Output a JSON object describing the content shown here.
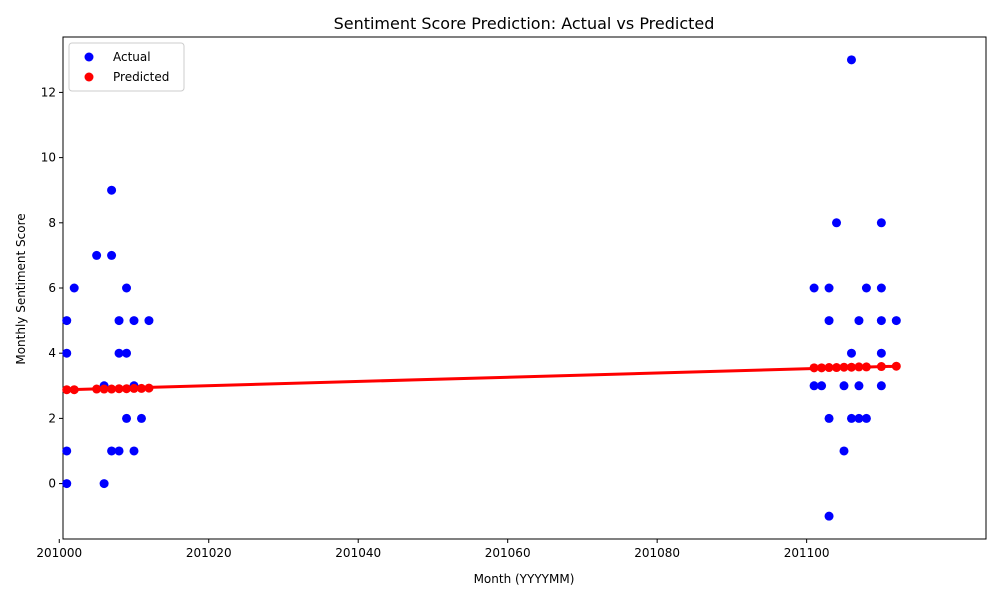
{
  "chart_data": {
    "type": "scatter",
    "title": "Sentiment Score Prediction: Actual vs Predicted",
    "xlabel": "Month (YYYYMM)",
    "ylabel": "Monthly Sentiment Score",
    "xlim": [
      201000.5,
      201124.0
    ],
    "ylim": [
      -1.7,
      13.7
    ],
    "xticks": [
      201000,
      201020,
      201040,
      201060,
      201080,
      201100
    ],
    "xtick_labels": [
      "201000",
      "201020",
      "201040",
      "201060",
      "201080",
      "201100"
    ],
    "yticks": [
      0,
      2,
      4,
      6,
      8,
      10,
      12
    ],
    "ytick_labels": [
      "0",
      "2",
      "4",
      "6",
      "8",
      "10",
      "12"
    ],
    "grid": false,
    "legend_position": "top-left",
    "series": [
      {
        "name": "Actual",
        "color": "#0000ff",
        "marker": "point",
        "points": [
          [
            201001,
            5
          ],
          [
            201001,
            4
          ],
          [
            201001,
            1
          ],
          [
            201001,
            0
          ],
          [
            201002,
            6
          ],
          [
            201005,
            7
          ],
          [
            201006,
            3
          ],
          [
            201006,
            0
          ],
          [
            201007,
            9
          ],
          [
            201007,
            7
          ],
          [
            201007,
            1
          ],
          [
            201008,
            5
          ],
          [
            201008,
            4
          ],
          [
            201008,
            1
          ],
          [
            201009,
            6
          ],
          [
            201009,
            4
          ],
          [
            201009,
            2
          ],
          [
            201010,
            5
          ],
          [
            201010,
            3
          ],
          [
            201010,
            1
          ],
          [
            201011,
            2
          ],
          [
            201012,
            5
          ],
          [
            201101,
            6
          ],
          [
            201101,
            3
          ],
          [
            201102,
            3
          ],
          [
            201103,
            6
          ],
          [
            201103,
            5
          ],
          [
            201103,
            2
          ],
          [
            201103,
            -1
          ],
          [
            201104,
            8
          ],
          [
            201105,
            3
          ],
          [
            201105,
            1
          ],
          [
            201106,
            13
          ],
          [
            201106,
            4
          ],
          [
            201106,
            2
          ],
          [
            201107,
            5
          ],
          [
            201107,
            3
          ],
          [
            201107,
            2
          ],
          [
            201108,
            6
          ],
          [
            201108,
            2
          ],
          [
            201110,
            8
          ],
          [
            201110,
            6
          ],
          [
            201110,
            5
          ],
          [
            201110,
            4
          ],
          [
            201110,
            3
          ],
          [
            201112,
            5
          ]
        ]
      },
      {
        "name": "Predicted",
        "color": "#ff0000",
        "marker": "point",
        "points": [
          [
            201001,
            2.88
          ],
          [
            201002,
            2.88
          ],
          [
            201005,
            2.9
          ],
          [
            201006,
            2.9
          ],
          [
            201007,
            2.9
          ],
          [
            201008,
            2.91
          ],
          [
            201009,
            2.91
          ],
          [
            201010,
            2.92
          ],
          [
            201011,
            2.92
          ],
          [
            201012,
            2.93
          ],
          [
            201101,
            3.55
          ],
          [
            201102,
            3.55
          ],
          [
            201103,
            3.56
          ],
          [
            201104,
            3.56
          ],
          [
            201105,
            3.57
          ],
          [
            201106,
            3.57
          ],
          [
            201107,
            3.58
          ],
          [
            201108,
            3.58
          ],
          [
            201110,
            3.59
          ],
          [
            201112,
            3.6
          ]
        ]
      }
    ],
    "fit_line": {
      "color": "#ff0000",
      "x": [
        201001,
        201112
      ],
      "y": [
        2.88,
        3.6
      ]
    }
  }
}
